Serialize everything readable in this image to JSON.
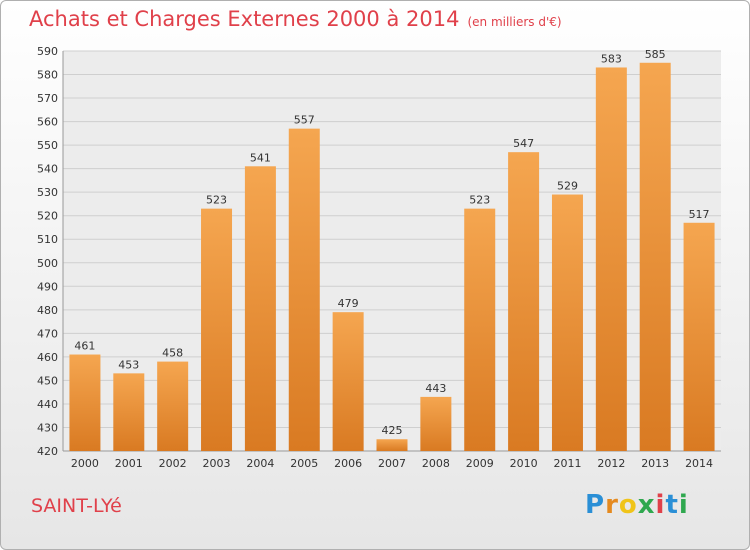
{
  "header": {
    "title": "Achats et Charges Externes 2000 à 2014",
    "unit": "(en milliers d'€)"
  },
  "footer": {
    "town": "SAINT-LYé",
    "logo_letters": [
      "P",
      "r",
      "o",
      "x",
      "i",
      "t",
      "i"
    ],
    "logo_colors": [
      "#2a8fd6",
      "#e58a1f",
      "#f0c419",
      "#2fa84f",
      "#e0404a",
      "#2a8fd6",
      "#2fa84f"
    ]
  },
  "colors": {
    "bar_top": "#f5a650",
    "bar_bottom": "#d97a22",
    "title": "#e0404a",
    "grid": "#cfcfcf"
  },
  "chart_data": {
    "type": "bar",
    "title": "Achats et Charges Externes 2000 à 2014",
    "subtitle": "(en milliers d'€)",
    "categories": [
      "2000",
      "2001",
      "2002",
      "2003",
      "2004",
      "2005",
      "2006",
      "2007",
      "2008",
      "2009",
      "2010",
      "2011",
      "2012",
      "2013",
      "2014"
    ],
    "values": [
      461,
      453,
      458,
      523,
      541,
      557,
      479,
      425,
      443,
      523,
      547,
      529,
      583,
      585,
      517
    ],
    "ylim": [
      420,
      590
    ],
    "yticks": [
      420,
      430,
      440,
      450,
      460,
      470,
      480,
      490,
      500,
      510,
      520,
      530,
      540,
      550,
      560,
      570,
      580,
      590
    ],
    "grid": true,
    "xlabel": "",
    "ylabel": ""
  }
}
